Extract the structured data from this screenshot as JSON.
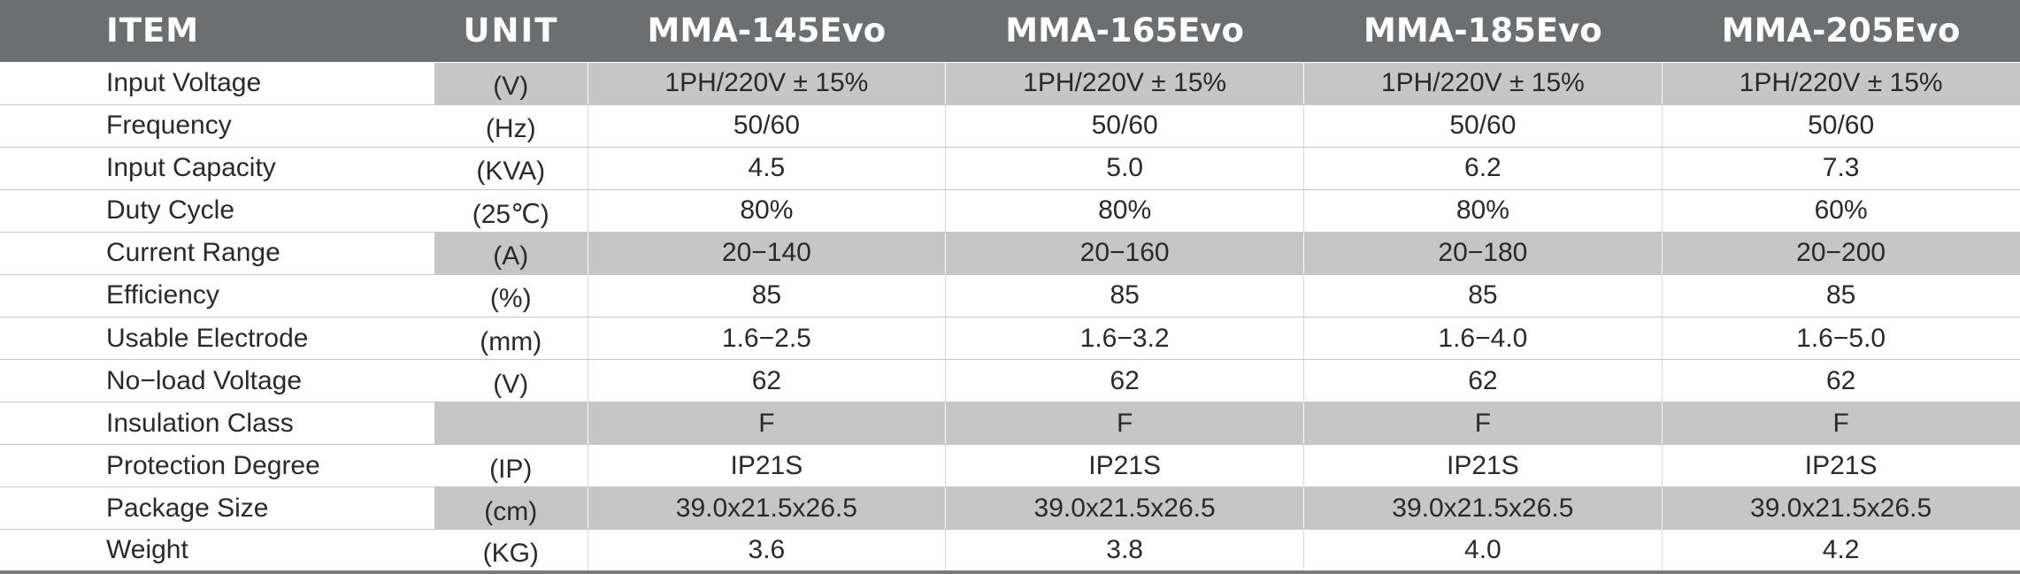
{
  "header": {
    "item": "ITEM",
    "unit": "UNIT",
    "models": [
      "MMA-145Evo",
      "MMA-165Evo",
      "MMA-185Evo",
      "MMA-205Evo"
    ]
  },
  "rows": [
    {
      "item": "Input Voltage",
      "unit": "(V)",
      "values": [
        "1PH/220V ± 15%",
        "1PH/220V ± 15%",
        "1PH/220V ± 15%",
        "1PH/220V ± 15%"
      ]
    },
    {
      "item": "Frequency",
      "unit": "(Hz)",
      "values": [
        "50/60",
        "50/60",
        "50/60",
        "50/60"
      ]
    },
    {
      "item": "Input Capacity",
      "unit": "(KVA)",
      "values": [
        "4.5",
        "5.0",
        "6.2",
        "7.3"
      ]
    },
    {
      "item": "Duty Cycle",
      "unit": "(25℃)",
      "values": [
        "80%",
        "80%",
        "80%",
        "60%"
      ]
    },
    {
      "item": "Current Range",
      "unit": "(A)",
      "values": [
        "20−140",
        "20−160",
        "20−180",
        "20−200"
      ]
    },
    {
      "item": "Efficiency",
      "unit": "(%)",
      "values": [
        "85",
        "85",
        "85",
        "85"
      ]
    },
    {
      "item": "Usable Electrode",
      "unit": "(mm)",
      "values": [
        "1.6−2.5",
        "1.6−3.2",
        "1.6−4.0",
        "1.6−5.0"
      ]
    },
    {
      "item": "No−load Voltage",
      "unit": "(V)",
      "values": [
        "62",
        "62",
        "62",
        "62"
      ]
    },
    {
      "item": "Insulation Class",
      "unit": "",
      "values": [
        "F",
        "F",
        "F",
        "F"
      ]
    },
    {
      "item": "Protection Degree",
      "unit": "(IP)",
      "values": [
        "IP21S",
        "IP21S",
        "IP21S",
        "IP21S"
      ]
    },
    {
      "item": "Package Size",
      "unit": "(cm)",
      "values": [
        "39.0x21.5x26.5",
        "39.0x21.5x26.5",
        "39.0x21.5x26.5",
        "39.0x21.5x26.5"
      ]
    },
    {
      "item": "Weight",
      "unit": "(KG)",
      "values": [
        "3.6",
        "3.8",
        "4.0",
        "4.2"
      ]
    }
  ],
  "shaded_rows": [
    true,
    false,
    false,
    false,
    true,
    false,
    false,
    false,
    true,
    false,
    true,
    false
  ],
  "colors": {
    "header_bg": "#6d6e70",
    "shade_bg": "#c6c6c6",
    "text": "#2a2a2a"
  }
}
